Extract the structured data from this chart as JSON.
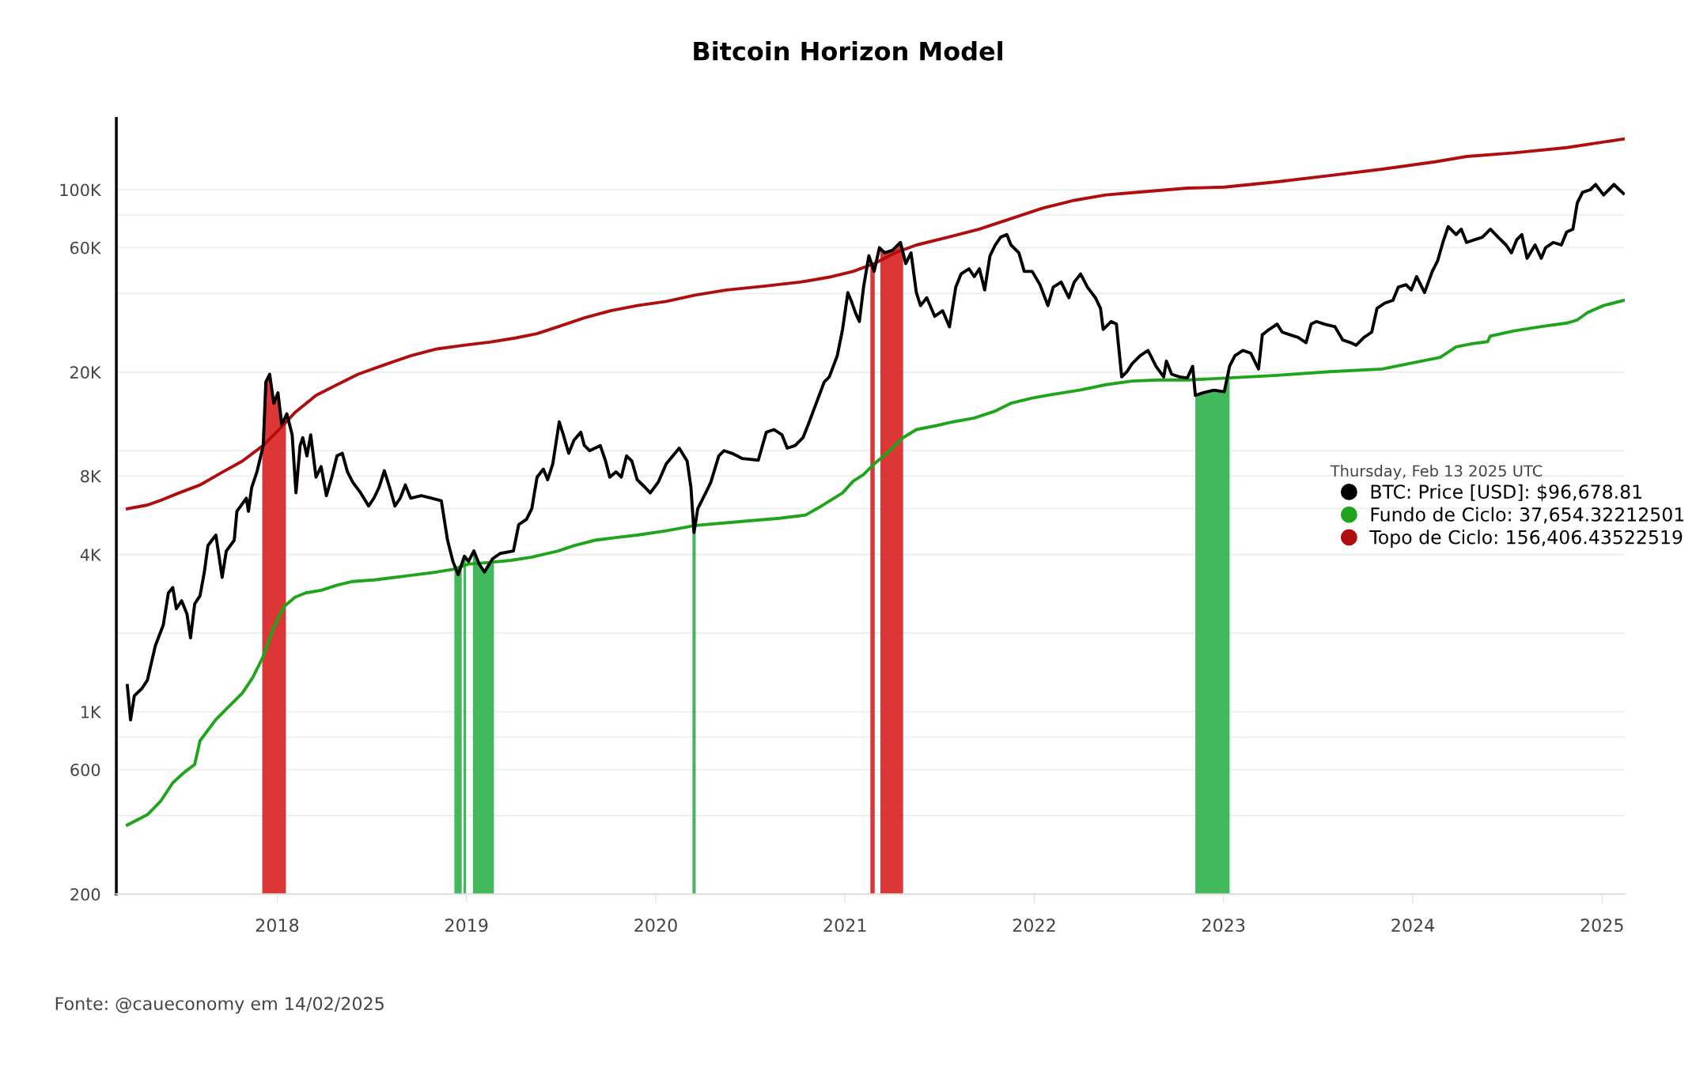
{
  "chart_data": {
    "type": "line",
    "title": "Bitcoin Horizon Model",
    "legend_title": "Thursday, Feb 13 2025 UTC",
    "annotations": [
      "Fonte: @caueconomy em 14/02/2025"
    ],
    "log": "y",
    "grid": "y",
    "legend": "right",
    "marker": "none",
    "line_style": "solid",
    "xlim": [
      2017.15,
      2025.12
    ],
    "xticks": [
      2018,
      2019,
      2020,
      2021,
      2022,
      2023,
      2024,
      2025
    ],
    "ylim": [
      200,
      187500
    ],
    "yticks": [
      {
        "value": 200,
        "label": "200"
      },
      {
        "value": 400,
        "label": null
      },
      {
        "value": 600,
        "label": "600"
      },
      {
        "value": 800,
        "label": null
      },
      {
        "value": 1000,
        "label": "1K"
      },
      {
        "value": 2000,
        "label": null
      },
      {
        "value": 4000,
        "label": "4K"
      },
      {
        "value": 6000,
        "label": null
      },
      {
        "value": 8000,
        "label": "8K"
      },
      {
        "value": 10000,
        "label": null
      },
      {
        "value": 20000,
        "label": "20K"
      },
      {
        "value": 40000,
        "label": null
      },
      {
        "value": 60000,
        "label": "60K"
      },
      {
        "value": 80000,
        "label": null
      },
      {
        "value": 100000,
        "label": "100K"
      }
    ],
    "bands": [
      {
        "axis": "x",
        "from": 2017.921,
        "to": 2018.046,
        "color": "#d92020"
      },
      {
        "axis": "x",
        "from": 2018.936,
        "to": 2018.975,
        "color": "#2eb04a"
      },
      {
        "axis": "x",
        "from": 2018.984,
        "to": 2018.998,
        "color": "#2eb04a"
      },
      {
        "axis": "x",
        "from": 2019.034,
        "to": 2019.145,
        "color": "#2eb04a"
      },
      {
        "axis": "x",
        "from": 2020.194,
        "to": 2020.211,
        "color": "#2eb04a"
      },
      {
        "axis": "x",
        "from": 2021.134,
        "to": 2021.157,
        "color": "#d92020"
      },
      {
        "axis": "x",
        "from": 2021.187,
        "to": 2021.307,
        "color": "#d92020"
      },
      {
        "axis": "x",
        "from": 2022.851,
        "to": 2023.032,
        "color": "#2eb04a"
      }
    ],
    "series": [
      {
        "name": "BTC: Price [USD]: $96,678.81",
        "color": "#000000",
        "x": [
          2017.208,
          2017.225,
          2017.245,
          2017.286,
          2017.314,
          2017.356,
          2017.398,
          2017.425,
          2017.448,
          2017.467,
          2017.495,
          2017.523,
          2017.542,
          2017.564,
          2017.592,
          2017.615,
          2017.634,
          2017.676,
          2017.709,
          2017.731,
          2017.773,
          2017.787,
          2017.837,
          2017.848,
          2017.865,
          2017.893,
          2017.926,
          2017.94,
          2017.96,
          2017.982,
          2018.004,
          2018.024,
          2018.051,
          2018.079,
          2018.099,
          2018.121,
          2018.135,
          2018.157,
          2018.177,
          2018.205,
          2018.232,
          2018.26,
          2018.288,
          2018.316,
          2018.344,
          2018.371,
          2018.399,
          2018.441,
          2018.483,
          2018.511,
          2018.538,
          2018.566,
          2018.594,
          2018.622,
          2018.65,
          2018.677,
          2018.705,
          2018.761,
          2018.817,
          2018.867,
          2018.9,
          2018.928,
          2018.956,
          2018.989,
          2019.011,
          2019.039,
          2019.067,
          2019.095,
          2019.137,
          2019.178,
          2019.248,
          2019.276,
          2019.317,
          2019.345,
          2019.373,
          2019.406,
          2019.429,
          2019.456,
          2019.49,
          2019.512,
          2019.54,
          2019.568,
          2019.604,
          2019.623,
          2019.651,
          2019.707,
          2019.735,
          2019.757,
          2019.79,
          2019.818,
          2019.846,
          2019.874,
          2019.902,
          2019.944,
          2019.971,
          2020.013,
          2020.055,
          2020.124,
          2020.166,
          2020.186,
          2020.202,
          2020.222,
          2020.264,
          2020.291,
          2020.333,
          2020.361,
          2020.403,
          2020.458,
          2020.542,
          2020.584,
          2020.625,
          2020.667,
          2020.695,
          2020.737,
          2020.778,
          2020.806,
          2020.848,
          2020.89,
          2020.917,
          2020.959,
          2020.987,
          2021.015,
          2021.037,
          2021.057,
          2021.076,
          2021.098,
          2021.126,
          2021.154,
          2021.182,
          2021.21,
          2021.251,
          2021.293,
          2021.321,
          2021.349,
          2021.377,
          2021.399,
          2021.432,
          2021.474,
          2021.516,
          2021.552,
          2021.585,
          2021.613,
          2021.655,
          2021.683,
          2021.71,
          2021.738,
          2021.766,
          2021.794,
          2021.822,
          2021.855,
          2021.877,
          2021.919,
          2021.947,
          2021.989,
          2022.03,
          2022.072,
          2022.1,
          2022.142,
          2022.183,
          2022.211,
          2022.245,
          2022.281,
          2022.323,
          2022.35,
          2022.364,
          2022.406,
          2022.434,
          2022.462,
          2022.49,
          2022.517,
          2022.559,
          2022.601,
          2022.643,
          2022.684,
          2022.698,
          2022.726,
          2022.768,
          2022.809,
          2022.837,
          2022.851,
          2022.893,
          2022.949,
          2023.004,
          2023.032,
          2023.06,
          2023.102,
          2023.143,
          2023.171,
          2023.185,
          2023.205,
          2023.241,
          2023.283,
          2023.31,
          2023.352,
          2023.394,
          2023.436,
          2023.463,
          2023.491,
          2023.533,
          2023.589,
          2023.63,
          2023.672,
          2023.7,
          2023.742,
          2023.783,
          2023.811,
          2023.853,
          2023.895,
          2023.923,
          2023.964,
          2023.992,
          2024.02,
          2024.062,
          2024.103,
          2024.131,
          2024.159,
          2024.187,
          2024.229,
          2024.256,
          2024.284,
          2024.326,
          2024.368,
          2024.41,
          2024.451,
          2024.493,
          2024.521,
          2024.549,
          2024.576,
          2024.604,
          2024.646,
          2024.679,
          2024.702,
          2024.743,
          2024.785,
          2024.813,
          2024.846,
          2024.869,
          2024.897,
          2024.938,
          2024.966,
          2025.008,
          2025.036,
          2025.063,
          2025.091,
          2025.113
        ],
        "values": [
          1260,
          930,
          1150,
          1230,
          1320,
          1790,
          2150,
          2850,
          2990,
          2480,
          2660,
          2370,
          1920,
          2590,
          2780,
          3430,
          4330,
          4750,
          3270,
          4130,
          4540,
          5860,
          6580,
          5860,
          7230,
          8300,
          10470,
          18320,
          19630,
          15200,
          16670,
          12610,
          13840,
          11500,
          6890,
          10470,
          11220,
          9550,
          11500,
          7920,
          8690,
          6730,
          7920,
          9550,
          9770,
          8300,
          7570,
          6890,
          6140,
          6580,
          7230,
          8380,
          7230,
          6140,
          6580,
          7390,
          6580,
          6730,
          6580,
          6430,
          4540,
          3770,
          3350,
          3940,
          3770,
          4130,
          3680,
          3430,
          3850,
          4040,
          4130,
          5210,
          5460,
          5990,
          7920,
          8500,
          7740,
          8900,
          12900,
          11500,
          9770,
          10970,
          11770,
          10470,
          10000,
          10470,
          9120,
          7920,
          8300,
          7920,
          9550,
          9120,
          7740,
          7230,
          6890,
          7570,
          8900,
          10230,
          9120,
          7230,
          4860,
          5990,
          6890,
          7570,
          9550,
          10000,
          9770,
          9330,
          9200,
          11770,
          12050,
          11500,
          10230,
          10470,
          11220,
          12610,
          15200,
          18320,
          19180,
          23110,
          29150,
          40360,
          36810,
          33500,
          31260,
          42290,
          55850,
          48640,
          59980,
          57280,
          58610,
          62800,
          52120,
          57280,
          40360,
          35970,
          38550,
          32730,
          34360,
          29850,
          42290,
          47530,
          49770,
          46450,
          49770,
          41300,
          55850,
          61380,
          65770,
          67300,
          61380,
          57280,
          48640,
          48640,
          43280,
          35970,
          42290,
          44260,
          38550,
          44260,
          47530,
          42290,
          38550,
          35110,
          29150,
          31260,
          30550,
          19180,
          20090,
          21550,
          23110,
          24210,
          21060,
          19180,
          22050,
          19630,
          19180,
          19010,
          21060,
          16290,
          16670,
          17060,
          16830,
          21060,
          23110,
          24210,
          23660,
          21550,
          20560,
          27800,
          29150,
          30550,
          28460,
          27800,
          27170,
          25940,
          30550,
          31260,
          30550,
          29850,
          26550,
          25940,
          25350,
          27170,
          28460,
          35110,
          36810,
          37670,
          42290,
          43280,
          41300,
          46450,
          40360,
          48640,
          53330,
          62800,
          72230,
          67300,
          70590,
          62800,
          64270,
          65770,
          70590,
          65770,
          61380,
          57280,
          64270,
          67300,
          54580,
          61380,
          54580,
          59980,
          62800,
          61380,
          68860,
          70590,
          88920,
          97720,
          100000,
          104700,
          95500,
          100000,
          104700,
          100000,
          96678.81
        ]
      },
      {
        "name": "Fundo de Ciclo: 37,654.32212501",
        "color": "#1fa51c",
        "x": [
          2017.208,
          2017.314,
          2017.384,
          2017.448,
          2017.509,
          2017.564,
          2017.592,
          2017.634,
          2017.676,
          2017.731,
          2017.815,
          2017.871,
          2017.926,
          2017.982,
          2018.038,
          2018.093,
          2018.149,
          2018.232,
          2018.316,
          2018.399,
          2018.511,
          2018.622,
          2018.733,
          2018.844,
          2018.928,
          2019.011,
          2019.123,
          2019.234,
          2019.345,
          2019.484,
          2019.568,
          2019.679,
          2019.79,
          2019.902,
          2020.055,
          2020.208,
          2020.43,
          2020.653,
          2020.792,
          2020.876,
          2020.987,
          2021.043,
          2021.098,
          2021.154,
          2021.237,
          2021.307,
          2021.377,
          2021.488,
          2021.571,
          2021.683,
          2021.794,
          2021.877,
          2021.989,
          2022.1,
          2022.239,
          2022.378,
          2022.517,
          2022.656,
          2022.809,
          2023.032,
          2023.283,
          2023.561,
          2023.839,
          2023.978,
          2024.145,
          2024.229,
          2024.312,
          2024.396,
          2024.409,
          2024.535,
          2024.674,
          2024.813,
          2024.869,
          2024.925,
          2025.008,
          2025.113
        ],
        "values": [
          368,
          403,
          454,
          534,
          586,
          628,
          774,
          850,
          933,
          1023,
          1177,
          1353,
          1629,
          2105,
          2535,
          2742,
          2850,
          2917,
          3055,
          3155,
          3199,
          3270,
          3350,
          3430,
          3510,
          3680,
          3730,
          3800,
          3910,
          4130,
          4330,
          4540,
          4650,
          4750,
          4930,
          5170,
          5340,
          5510,
          5670,
          6140,
          6890,
          7640,
          8110,
          8900,
          10000,
          11220,
          12050,
          12500,
          12900,
          13340,
          14190,
          15200,
          15920,
          16440,
          17060,
          17900,
          18490,
          18660,
          18660,
          19010,
          19450,
          20090,
          20560,
          21550,
          22800,
          25000,
          25700,
          26180,
          27480,
          28770,
          29850,
          30830,
          31700,
          33880,
          35970,
          37654.32212501
        ]
      },
      {
        "name": "Topo de Ciclo: 156,406.43522519",
        "color": "#b00e0e",
        "x": [
          2017.208,
          2017.314,
          2017.398,
          2017.481,
          2017.592,
          2017.703,
          2017.815,
          2017.926,
          2018.01,
          2018.093,
          2018.205,
          2018.316,
          2018.427,
          2018.566,
          2018.705,
          2018.844,
          2018.984,
          2019.123,
          2019.262,
          2019.373,
          2019.484,
          2019.623,
          2019.762,
          2019.902,
          2020.055,
          2020.208,
          2020.375,
          2020.57,
          2020.764,
          2020.931,
          2021.043,
          2021.154,
          2021.265,
          2021.377,
          2021.544,
          2021.71,
          2021.877,
          2022.044,
          2022.211,
          2022.378,
          2022.545,
          2022.809,
          2023.004,
          2023.283,
          2023.561,
          2023.839,
          2024.117,
          2024.284,
          2024.535,
          2024.813,
          2025.113
        ],
        "values": [
          5990,
          6190,
          6510,
          6890,
          7390,
          8220,
          9120,
          10470,
          12050,
          13990,
          16290,
          17900,
          19630,
          21330,
          23110,
          24540,
          25350,
          26050,
          27050,
          28090,
          29850,
          32300,
          34360,
          35970,
          37300,
          39450,
          41300,
          42660,
          44260,
          46450,
          48640,
          52120,
          57280,
          61380,
          65770,
          70590,
          77450,
          84950,
          91030,
          95500,
          97720,
          101400,
          102300,
          107200,
          113300,
          119900,
          127900,
          134000,
          138400,
          145000,
          156406.43522519
        ]
      }
    ]
  }
}
